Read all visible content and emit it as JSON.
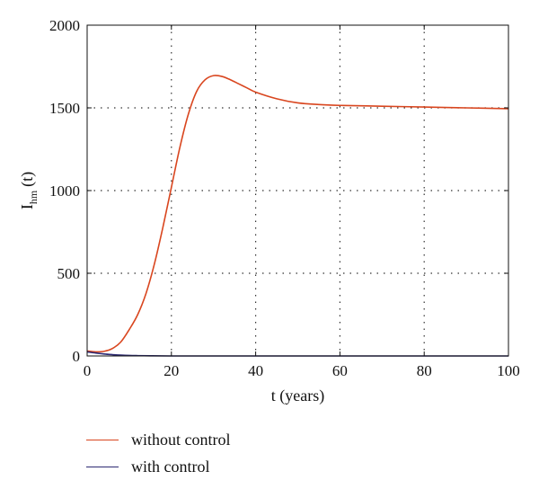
{
  "chart_data": {
    "type": "line",
    "xlabel": "t (years)",
    "ylabel_main": "I",
    "ylabel_sub": "hm",
    "ylabel_tail": "(t)",
    "xlim": [
      0,
      100
    ],
    "ylim": [
      0,
      2000
    ],
    "xticks": [
      0,
      20,
      40,
      60,
      80,
      100
    ],
    "yticks": [
      0,
      500,
      1000,
      1500,
      2000
    ],
    "grid": true,
    "legend_position": "bottom-left",
    "series": [
      {
        "name": "without control",
        "color": "#d9461f",
        "x": [
          0,
          2,
          4,
          6,
          8,
          10,
          12,
          14,
          16,
          18,
          20,
          22,
          24,
          26,
          28,
          30,
          32,
          34,
          36,
          38,
          40,
          45,
          50,
          55,
          60,
          70,
          80,
          90,
          100
        ],
        "y": [
          30,
          25,
          28,
          45,
          85,
          160,
          250,
          380,
          560,
          780,
          1020,
          1260,
          1460,
          1600,
          1670,
          1695,
          1690,
          1670,
          1645,
          1620,
          1595,
          1555,
          1530,
          1520,
          1515,
          1510,
          1505,
          1500,
          1495
        ]
      },
      {
        "name": "with control",
        "color": "#2d2a73",
        "x": [
          0,
          2,
          4,
          6,
          8,
          10,
          12,
          15,
          20,
          30,
          50,
          100
        ],
        "y": [
          25,
          18,
          12,
          8,
          5,
          3,
          2,
          1,
          0,
          0,
          0,
          0
        ]
      }
    ]
  }
}
